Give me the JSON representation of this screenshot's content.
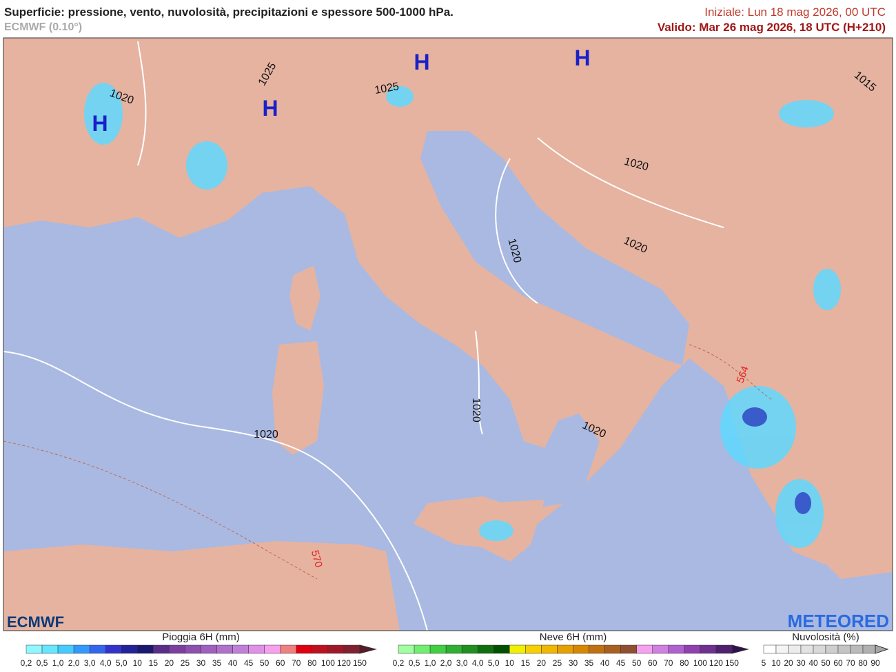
{
  "header": {
    "title": "Superficie: pressione, vento, nuvolosità, precipitazioni e spessore 500-1000 hPa.",
    "model": "ECMWF (0.10°)",
    "init": "Iniziale: Lun 18 mag 2026, 00 UTC",
    "valid": "Valido: Mar 26 mag 2026, 18 UTC (H+210)"
  },
  "map": {
    "pressure_centers": [
      "H",
      "H",
      "H",
      "H"
    ],
    "isobar_labels": [
      "1020",
      "1025",
      "1025",
      "1015",
      "1020",
      "1020",
      "1020",
      "1020",
      "1020",
      "1020"
    ],
    "thickness_labels": [
      "564",
      "570"
    ],
    "logos": [
      "ECMWF",
      "METEORED"
    ]
  },
  "legends": [
    {
      "title": "Pioggia 6H (mm)",
      "labels": [
        "0,2",
        "0,5",
        "1,0",
        "2,0",
        "3,0",
        "4,0",
        "5,0",
        "10",
        "15",
        "20",
        "25",
        "30",
        "35",
        "40",
        "45",
        "50",
        "60",
        "70",
        "80",
        "100",
        "120",
        "150"
      ],
      "colors": [
        "#8ff8ff",
        "#66e6ff",
        "#44ccff",
        "#3399ff",
        "#3366ee",
        "#3333cc",
        "#222299",
        "#1a1870",
        "#5a2d8a",
        "#7b3fa0",
        "#8e4faf",
        "#a060bf",
        "#b070cc",
        "#c080d8",
        "#e090e8",
        "#f8a0f0",
        "#f08080",
        "#e00010",
        "#c01020",
        "#a01828",
        "#802030",
        "#5a1a28"
      ]
    },
    {
      "title": "Neve 6H (mm)",
      "labels": [
        "0,2",
        "0,5",
        "1,0",
        "2,0",
        "3,0",
        "4,0",
        "5,0",
        "10",
        "15",
        "20",
        "25",
        "30",
        "35",
        "40",
        "45",
        "50",
        "60",
        "70",
        "80",
        "100",
        "120",
        "150"
      ],
      "colors": [
        "#a0ffa0",
        "#70ee70",
        "#40d040",
        "#30b030",
        "#209020",
        "#107010",
        "#005000",
        "#f0f000",
        "#f8d000",
        "#f0b800",
        "#e8a000",
        "#d88800",
        "#c07010",
        "#a86020",
        "#905030",
        "#f8a0f0",
        "#d080e0",
        "#b060d0",
        "#9040b0",
        "#703090",
        "#502070",
        "#301050"
      ]
    },
    {
      "title": "Nuvolosità (%)",
      "labels": [
        "5",
        "10",
        "20",
        "30",
        "40",
        "50",
        "60",
        "70",
        "80",
        "90"
      ],
      "colors": [
        "#ffffff",
        "#f4f4f4",
        "#ececec",
        "#e2e2e2",
        "#d8d8d8",
        "#cecece",
        "#c4c4c4",
        "#bababa",
        "#b0b0b0",
        "#a6a6a6"
      ]
    }
  ]
}
